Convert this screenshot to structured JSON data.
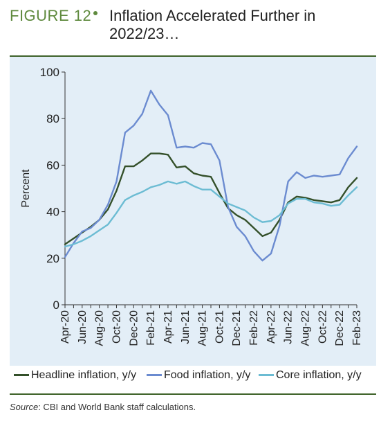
{
  "header": {
    "figure_label": "FIGURE 12",
    "title": "Inflation Accelerated Further in 2022/23…"
  },
  "colors": {
    "figure_label": "#5f8a3e",
    "panel_background": "#e3eef7",
    "rule": "#3e6229"
  },
  "chart_data": {
    "type": "line",
    "ylabel": "Percent",
    "ylim": [
      0,
      100
    ],
    "yticks": [
      0,
      20,
      40,
      60,
      80,
      100
    ],
    "grid": false,
    "legend_position": "bottom",
    "x": [
      "Apr-20",
      "May-20",
      "Jun-20",
      "Jul-20",
      "Aug-20",
      "Sep-20",
      "Oct-20",
      "Nov-20",
      "Dec-20",
      "Jan-21",
      "Feb-21",
      "Mar-21",
      "Apr-21",
      "May-21",
      "Jun-21",
      "Jul-21",
      "Aug-21",
      "Sep-21",
      "Oct-21",
      "Nov-21",
      "Dec-21",
      "Jan-22",
      "Feb-22",
      "Mar-22",
      "Apr-22",
      "May-22",
      "Jun-22",
      "Jul-22",
      "Aug-22",
      "Sep-22",
      "Oct-22",
      "Nov-22",
      "Dec-22",
      "Jan-23",
      "Feb-23"
    ],
    "x_tick_labels": [
      "Apr-20",
      "Jun-20",
      "Aug-20",
      "Oct-20",
      "Dec-20",
      "Feb-21",
      "Apr-21",
      "Jun-21",
      "Aug-21",
      "Oct-21",
      "Dec-21",
      "Feb-22",
      "Apr-22",
      "Jun-22",
      "Aug-22",
      "Oct-22",
      "Dec-22",
      "Feb-23"
    ],
    "series": [
      {
        "name": "Headline inflation, y/y",
        "color": "#34502a",
        "values": [
          26,
          28.5,
          31,
          33.5,
          36.5,
          41,
          49,
          59.5,
          59.5,
          62,
          65,
          65,
          64.5,
          59,
          59.5,
          56.5,
          55.5,
          55,
          48,
          41.5,
          38.5,
          36.5,
          33,
          29.5,
          31,
          36.5,
          44,
          46.5,
          46,
          45,
          44.5,
          44,
          45,
          50.5,
          54.5
        ]
      },
      {
        "name": "Food inflation, y/y",
        "color": "#6b8bd0",
        "values": [
          20.5,
          26.5,
          31.5,
          33,
          36.5,
          43,
          53,
          74,
          77,
          82,
          92,
          86,
          81.5,
          67.5,
          68,
          67.5,
          69.5,
          69,
          62,
          42,
          33.5,
          29.5,
          23,
          19,
          22,
          34,
          53,
          57,
          54.5,
          55.5,
          55,
          55.5,
          56,
          63,
          68
        ]
      },
      {
        "name": "Core inflation, y/y",
        "color": "#6cbcd3",
        "values": [
          25,
          26,
          27.5,
          29.5,
          32,
          34.5,
          39.5,
          45,
          47,
          48.5,
          50.5,
          51.5,
          53,
          52,
          53,
          51,
          49.5,
          49.5,
          46.5,
          43.5,
          42,
          40.5,
          37.5,
          35.5,
          36,
          38.5,
          43.5,
          45.5,
          45.5,
          44,
          43.5,
          42.5,
          43,
          47,
          50.5
        ]
      }
    ]
  },
  "source": {
    "prefix": "Source",
    "text": ": CBI and World Bank staff calculations."
  }
}
